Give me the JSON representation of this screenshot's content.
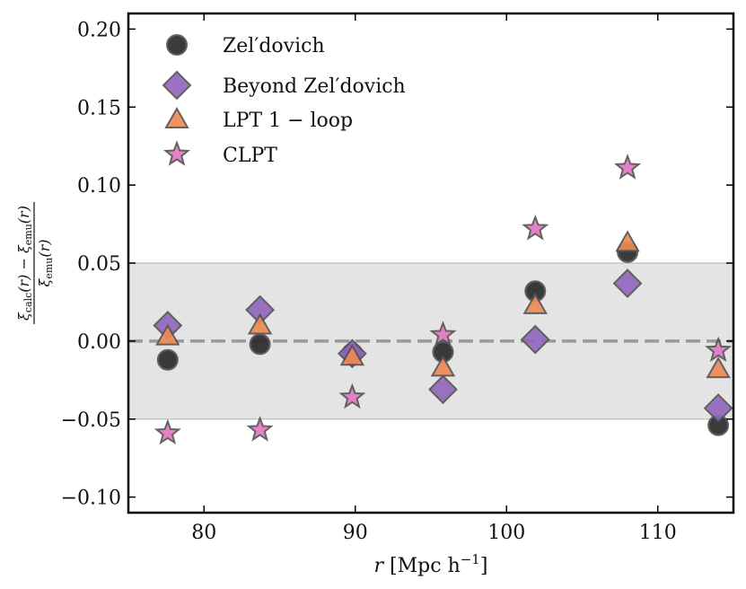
{
  "chart_data": {
    "type": "scatter",
    "title": "",
    "xlabel": "r [Mpc h⁻¹]",
    "ylabel": "(ξ_calc(r) − ξ_emu(r)) / ξ_emu(r)",
    "xlim": [
      75,
      115
    ],
    "ylim": [
      -0.11,
      0.21
    ],
    "x_ticks": [
      80,
      90,
      100,
      110
    ],
    "x_tick_labels": [
      "80",
      "90",
      "100",
      "110"
    ],
    "y_ticks": [
      -0.1,
      -0.05,
      0.0,
      0.05,
      0.1,
      0.15,
      0.2
    ],
    "y_tick_labels": [
      "−0.10",
      "−0.05",
      "0.00",
      "0.05",
      "0.10",
      "0.15",
      "0.20"
    ],
    "band": {
      "y_min": -0.05,
      "y_max": 0.05,
      "color": "#e4e4e4"
    },
    "reference_line": {
      "y": 0.0,
      "style": "dashed",
      "color": "#999999"
    },
    "legend_position": "top-left",
    "series": [
      {
        "name": "Zel′dovich",
        "marker": "circle",
        "color": "#2b2b2b",
        "x": [
          77.6,
          83.7,
          89.8,
          95.8,
          101.9,
          108.0,
          114.0
        ],
        "y": [
          -0.012,
          -0.002,
          -0.008,
          -0.007,
          0.032,
          0.057,
          -0.054
        ]
      },
      {
        "name": "Beyond Zel′dovich",
        "marker": "diamond",
        "color": "#9467bd",
        "x": [
          77.6,
          83.7,
          89.8,
          95.8,
          101.9,
          108.0,
          114.0
        ],
        "y": [
          0.01,
          0.02,
          -0.008,
          -0.031,
          0.001,
          0.037,
          -0.043
        ]
      },
      {
        "name": "LPT 1 − loop",
        "marker": "triangle",
        "color": "#ef8a54",
        "x": [
          77.6,
          83.7,
          89.8,
          95.8,
          101.9,
          108.0,
          114.0
        ],
        "y": [
          0.003,
          0.01,
          -0.01,
          -0.017,
          0.023,
          0.063,
          -0.018
        ]
      },
      {
        "name": "CLPT",
        "marker": "star",
        "color": "#e377c2",
        "x": [
          77.6,
          83.7,
          89.8,
          95.8,
          101.9,
          108.0,
          114.0
        ],
        "y": [
          -0.059,
          -0.057,
          -0.036,
          0.004,
          0.072,
          0.111,
          -0.006
        ]
      }
    ]
  }
}
